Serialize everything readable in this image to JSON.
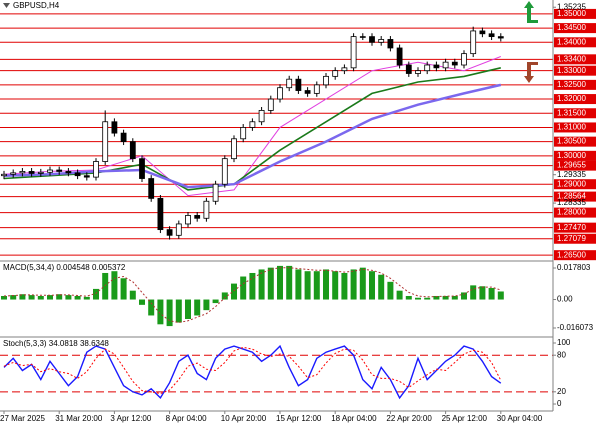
{
  "chart_data": [
    {
      "type": "candlestick",
      "title": "GBPUSD,H4",
      "open": [
        1.293,
        1.2935,
        1.294,
        1.2945,
        1.2938,
        1.2942,
        1.295,
        1.2945,
        1.294,
        1.293,
        1.2925,
        1.298,
        1.312,
        1.308,
        1.305,
        1.299,
        1.292,
        1.285,
        1.274,
        1.272,
        1.276,
        1.279,
        1.278,
        1.284,
        1.29,
        1.299,
        1.306,
        1.31,
        1.312,
        1.316,
        1.32,
        1.324,
        1.327,
        1.323,
        1.322,
        1.325,
        1.328,
        1.33,
        1.331,
        1.342,
        1.342,
        1.34,
        1.341,
        1.338,
        1.332,
        1.329,
        1.33,
        1.332,
        1.331,
        1.333,
        1.332,
        1.336,
        1.344,
        1.343,
        1.342
      ],
      "high": [
        1.2947,
        1.2952,
        1.2957,
        1.2957,
        1.2954,
        1.2962,
        1.2962,
        1.2957,
        1.2952,
        1.2942,
        1.2992,
        1.316,
        1.3132,
        1.3092,
        1.3062,
        1.3002,
        1.2932,
        1.2862,
        1.2752,
        1.2772,
        1.2802,
        1.2802,
        1.2852,
        1.2912,
        1.3002,
        1.3072,
        1.3112,
        1.3132,
        1.3172,
        1.3212,
        1.3252,
        1.3282,
        1.3282,
        1.3242,
        1.3262,
        1.3292,
        1.3312,
        1.3322,
        1.3432,
        1.3432,
        1.3432,
        1.3422,
        1.3422,
        1.3392,
        1.3332,
        1.3312,
        1.3332,
        1.3332,
        1.3342,
        1.3342,
        1.3372,
        1.3455,
        1.3452,
        1.3442,
        1.3432
      ],
      "low": [
        1.2918,
        1.2923,
        1.2928,
        1.2926,
        1.2926,
        1.293,
        1.2933,
        1.2928,
        1.2918,
        1.2913,
        1.2913,
        1.2968,
        1.3068,
        1.3038,
        1.2978,
        1.2908,
        1.2838,
        1.2728,
        1.2705,
        1.2708,
        1.2748,
        1.2768,
        1.2768,
        1.2828,
        1.2888,
        1.2978,
        1.3048,
        1.3088,
        1.3108,
        1.3148,
        1.3188,
        1.3228,
        1.3218,
        1.3208,
        1.3208,
        1.3238,
        1.3268,
        1.3288,
        1.3298,
        1.3408,
        1.3388,
        1.3388,
        1.3368,
        1.3308,
        1.3278,
        1.3278,
        1.3288,
        1.3298,
        1.3298,
        1.3308,
        1.3308,
        1.3348,
        1.3418,
        1.3408,
        1.3403
      ],
      "close": [
        1.2935,
        1.294,
        1.2945,
        1.2938,
        1.2942,
        1.295,
        1.2945,
        1.294,
        1.293,
        1.2925,
        1.298,
        1.312,
        1.308,
        1.305,
        1.299,
        1.292,
        1.285,
        1.274,
        1.272,
        1.276,
        1.279,
        1.278,
        1.284,
        1.29,
        1.299,
        1.306,
        1.31,
        1.312,
        1.316,
        1.32,
        1.324,
        1.327,
        1.323,
        1.322,
        1.325,
        1.328,
        1.33,
        1.331,
        1.342,
        1.342,
        1.34,
        1.341,
        1.338,
        1.332,
        1.329,
        1.33,
        1.332,
        1.331,
        1.333,
        1.332,
        1.336,
        1.344,
        1.343,
        1.342,
        1.3415
      ],
      "series": [
        {
          "color": "#e040e0",
          "x": [
            0,
            5,
            10,
            15,
            20,
            25,
            30,
            35,
            40,
            45,
            50,
            54
          ],
          "values": [
            1.2935,
            1.2945,
            1.295,
            1.3,
            1.286,
            1.288,
            1.31,
            1.32,
            1.33,
            1.333,
            1.33,
            1.335
          ]
        },
        {
          "color": "#1a7a1a",
          "x": [
            0,
            5,
            10,
            15,
            20,
            25,
            30,
            35,
            40,
            45,
            50,
            54
          ],
          "values": [
            1.292,
            1.293,
            1.294,
            1.297,
            1.288,
            1.29,
            1.302,
            1.312,
            1.322,
            1.326,
            1.328,
            1.331
          ]
        },
        {
          "color": "#7b68ee",
          "x": [
            0,
            5,
            10,
            15,
            20,
            25,
            30,
            35,
            40,
            45,
            50,
            54
          ],
          "values": [
            1.293,
            1.2935,
            1.2945,
            1.295,
            1.289,
            1.29,
            1.298,
            1.305,
            1.313,
            1.318,
            1.322,
            1.325
          ]
        }
      ],
      "ylim": [
        1.2633,
        1.3549
      ],
      "yticks": [
        {
          "value": 1.35235,
          "label": "1.35235"
        },
        {
          "value": 1.29335,
          "label": "1.29335"
        },
        {
          "value": 1.28335,
          "label": "1.28335"
        }
      ],
      "levels": [
        {
          "value": 1.35,
          "label": "1.35000"
        },
        {
          "value": 1.345,
          "label": "1.34500"
        },
        {
          "value": 1.34,
          "label": "1.34000"
        },
        {
          "value": 1.334,
          "label": "1.33400"
        },
        {
          "value": 1.33,
          "label": "1.33000"
        },
        {
          "value": 1.325,
          "label": "1.32500"
        },
        {
          "value": 1.32,
          "label": "1.32000"
        },
        {
          "value": 1.315,
          "label": "1.31500"
        },
        {
          "value": 1.31,
          "label": "1.31000"
        },
        {
          "value": 1.305,
          "label": "1.30500"
        },
        {
          "value": 1.3,
          "label": "1.30000"
        },
        1.29655,
        {
          "value": 1.29,
          "label": "1.29000"
        },
        1.28564,
        {
          "value": 1.28,
          "label": "1.28000"
        },
        {
          "value": 1.2747,
          "label": "1.27470"
        },
        1.27079,
        {
          "value": 1.265,
          "label": "1.26500"
        }
      ],
      "level_color": "#e00000"
    },
    {
      "type": "macd",
      "title": "MACD(5,34,4) 0.004548 0.005372",
      "values": [
        0.002,
        0.0025,
        0.003,
        0.0025,
        0.002,
        0.0025,
        0.003,
        0.0025,
        0.002,
        0.0015,
        0.006,
        0.015,
        0.016,
        0.012,
        0.005,
        -0.003,
        -0.009,
        -0.014,
        -0.015,
        -0.013,
        -0.011,
        -0.009,
        -0.006,
        -0.002,
        0.004,
        0.009,
        0.013,
        0.015,
        0.017,
        0.018,
        0.019,
        0.019,
        0.017,
        0.016,
        0.016,
        0.017,
        0.016,
        0.015,
        0.017,
        0.018,
        0.016,
        0.014,
        0.01,
        0.005,
        0.002,
        0.001,
        0.001,
        0.002,
        0.002,
        0.002,
        0.004,
        0.008,
        0.0075,
        0.0065,
        0.004548
      ],
      "signal": [
        0.002,
        0.0022,
        0.0026,
        0.0026,
        0.0024,
        0.0024,
        0.0027,
        0.0026,
        0.0023,
        0.0019,
        0.0035,
        0.008,
        0.012,
        0.013,
        0.01,
        0.004,
        -0.002,
        -0.008,
        -0.012,
        -0.013,
        -0.012,
        -0.01,
        -0.008,
        -0.004,
        0.001,
        0.005,
        0.009,
        0.012,
        0.015,
        0.017,
        0.018,
        0.018,
        0.0175,
        0.017,
        0.0165,
        0.0165,
        0.016,
        0.0155,
        0.016,
        0.017,
        0.0165,
        0.015,
        0.012,
        0.008,
        0.004,
        0.002,
        0.0015,
        0.0017,
        0.0019,
        0.002,
        0.003,
        0.006,
        0.007,
        0.007,
        0.005372
      ],
      "color": "#1a9a1a",
      "signal_color": "#b03030",
      "ylim": [
        -0.0206,
        0.0212
      ],
      "yticks": [
        0.017803,
        {
          "value": 0,
          "label": "0.00"
        },
        -0.016073
      ]
    },
    {
      "type": "stochastic",
      "title": "Stoch(5,3,3) 34.0818 38.6348",
      "series": [
        {
          "color": "#1a1aff",
          "values": [
            60,
            75,
            55,
            65,
            40,
            70,
            50,
            30,
            45,
            85,
            95,
            90,
            60,
            30,
            20,
            15,
            25,
            10,
            35,
            70,
            80,
            50,
            40,
            75,
            90,
            95,
            90,
            85,
            70,
            80,
            95,
            60,
            30,
            40,
            75,
            85,
            90,
            95,
            80,
            40,
            25,
            60,
            40,
            10,
            30,
            75,
            40,
            55,
            70,
            80,
            95,
            90,
            70,
            45,
            34.0818
          ]
        },
        {
          "color": "#ff0000",
          "dotted": true,
          "values": [
            62,
            68,
            63,
            65,
            53,
            58,
            53,
            50,
            42,
            53,
            75,
            90,
            82,
            60,
            37,
            22,
            20,
            17,
            23,
            40,
            62,
            67,
            57,
            55,
            68,
            87,
            93,
            90,
            82,
            78,
            82,
            78,
            62,
            43,
            48,
            67,
            83,
            90,
            88,
            72,
            48,
            42,
            42,
            37,
            27,
            38,
            48,
            57,
            55,
            68,
            82,
            88,
            85,
            68,
            38.6348
          ]
        }
      ],
      "levels": [
        80,
        20
      ],
      "level_color": "#e00000",
      "ylim": [
        -9.8,
        108.2
      ],
      "yticks": [
        100,
        80,
        20,
        0
      ],
      "categories": [
        "27 Mar 2025",
        null,
        null,
        null,
        null,
        null,
        "31 Mar 20:00",
        null,
        null,
        null,
        null,
        null,
        "3 Apr 12:00",
        null,
        null,
        null,
        null,
        null,
        "8 Apr 04:00",
        null,
        null,
        null,
        null,
        null,
        "10 Apr 20:00",
        null,
        null,
        null,
        null,
        null,
        "15 Apr 12:00",
        null,
        null,
        null,
        null,
        null,
        "18 Apr 04:00",
        null,
        null,
        null,
        null,
        null,
        "22 Apr 20:00",
        null,
        null,
        null,
        null,
        null,
        "25 Apr 12:00",
        null,
        null,
        null,
        null,
        null,
        "30 Apr 04:00"
      ]
    }
  ]
}
